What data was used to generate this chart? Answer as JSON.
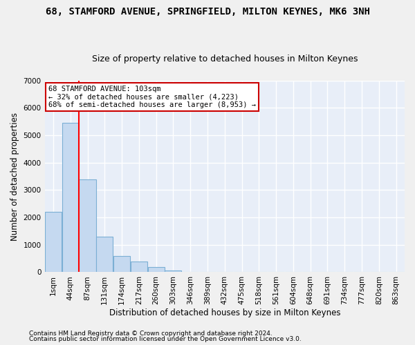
{
  "title": "68, STAMFORD AVENUE, SPRINGFIELD, MILTON KEYNES, MK6 3NH",
  "subtitle": "Size of property relative to detached houses in Milton Keynes",
  "xlabel": "Distribution of detached houses by size in Milton Keynes",
  "ylabel": "Number of detached properties",
  "footer1": "Contains HM Land Registry data © Crown copyright and database right 2024.",
  "footer2": "Contains public sector information licensed under the Open Government Licence v3.0.",
  "annotation_title": "68 STAMFORD AVENUE: 103sqm",
  "annotation_line1": "← 32% of detached houses are smaller (4,223)",
  "annotation_line2": "68% of semi-detached houses are larger (8,953) →",
  "bar_labels": [
    "1sqm",
    "44sqm",
    "87sqm",
    "131sqm",
    "174sqm",
    "217sqm",
    "260sqm",
    "303sqm",
    "346sqm",
    "389sqm",
    "432sqm",
    "475sqm",
    "518sqm",
    "561sqm",
    "604sqm",
    "648sqm",
    "691sqm",
    "734sqm",
    "777sqm",
    "820sqm",
    "863sqm"
  ],
  "bar_values": [
    2200,
    5450,
    3400,
    1300,
    600,
    380,
    200,
    50,
    20,
    5,
    2,
    0,
    0,
    0,
    0,
    0,
    0,
    0,
    0,
    0,
    0
  ],
  "bar_color": "#c5d9f0",
  "bar_edge_color": "#7bafd4",
  "bg_color": "#e8eef8",
  "grid_color": "#ffffff",
  "red_line_x": 1.5,
  "ylim": [
    0,
    7000
  ],
  "annotation_box_facecolor": "#ffffff",
  "annotation_border_color": "#cc0000",
  "title_fontsize": 10,
  "subtitle_fontsize": 9,
  "axis_label_fontsize": 8.5,
  "tick_fontsize": 7.5,
  "footer_fontsize": 6.5
}
